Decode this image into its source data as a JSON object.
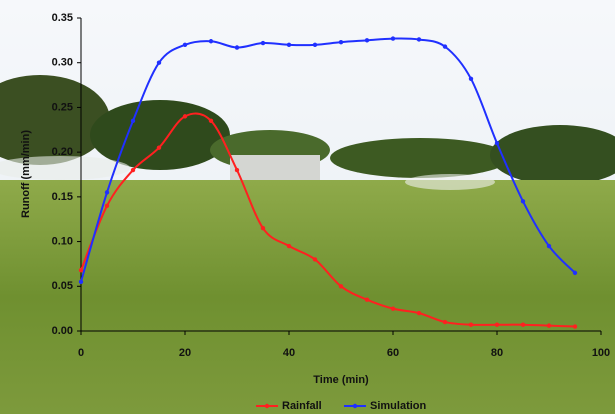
{
  "chart_data": {
    "type": "line",
    "x_label": "Time (min)",
    "y_label": "Runoff (mm/min)",
    "x": [
      0,
      5,
      10,
      15,
      20,
      25,
      30,
      35,
      40,
      45,
      50,
      55,
      60,
      65,
      70,
      75,
      80,
      85,
      90,
      95
    ],
    "series": [
      {
        "name": "Rainfall",
        "color": "#ff2020",
        "values": [
          0.068,
          0.14,
          0.18,
          0.205,
          0.24,
          0.235,
          0.18,
          0.115,
          0.095,
          0.08,
          0.05,
          0.035,
          0.025,
          0.02,
          0.01,
          0.007,
          0.007,
          0.007,
          0.006,
          0.005
        ]
      },
      {
        "name": "Simulation",
        "color": "#2030ff",
        "values": [
          0.055,
          0.155,
          0.235,
          0.3,
          0.32,
          0.324,
          0.317,
          0.322,
          0.32,
          0.32,
          0.323,
          0.325,
          0.327,
          0.326,
          0.318,
          0.282,
          0.21,
          0.145,
          0.095,
          0.065
        ]
      }
    ],
    "xlim": [
      0,
      100
    ],
    "xticks": [
      0,
      20,
      40,
      60,
      80,
      100
    ],
    "ylim": [
      0,
      0.35
    ],
    "yticks": [
      {
        "value": 0,
        "label": "0.00"
      },
      0.05,
      {
        "value": 0.1,
        "label": "0.10"
      },
      0.15,
      {
        "value": 0.2,
        "label": "0.20"
      },
      0.25,
      {
        "value": 0.3,
        "label": "0.30"
      },
      0.35
    ],
    "legend": "bottom"
  }
}
